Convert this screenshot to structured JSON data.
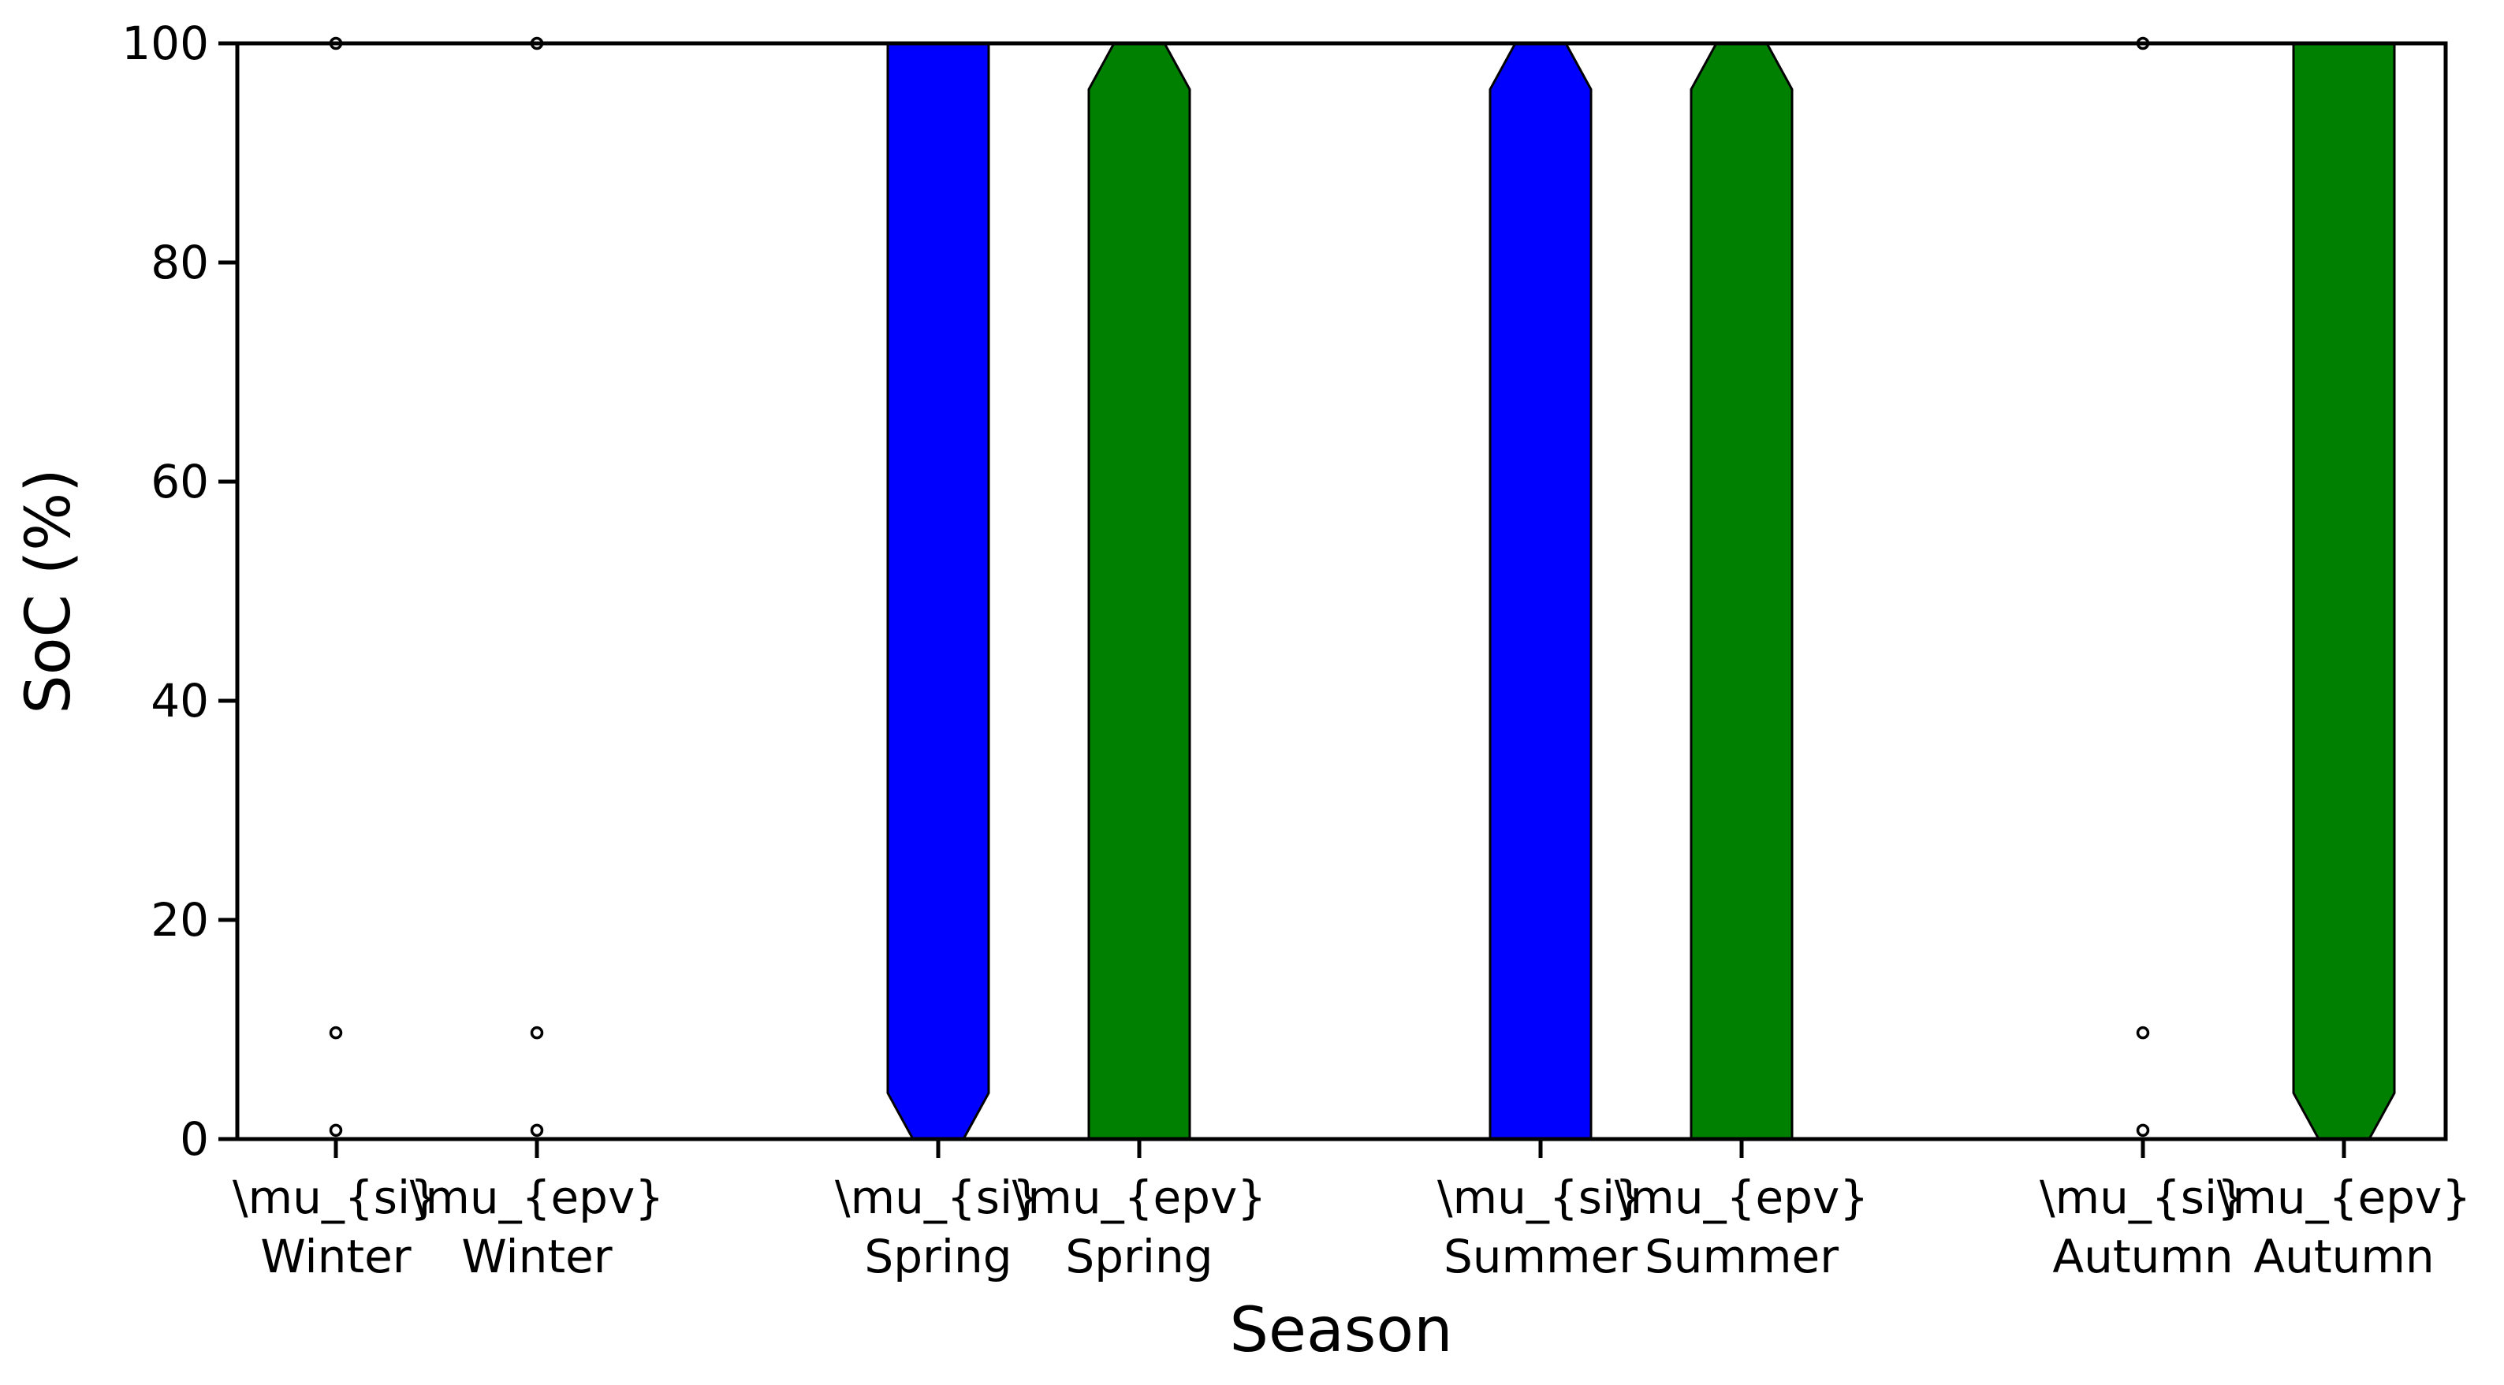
{
  "chart_data": {
    "type": "box",
    "title": "",
    "xlabel": "Season",
    "ylabel": "SoC (%)",
    "ylim": [
      0,
      100
    ],
    "yticks": [
      0,
      20,
      40,
      60,
      80,
      100
    ],
    "grid": false,
    "legend": "none",
    "categories": [
      {
        "line1": "\\mu_{si}",
        "line2": "Winter"
      },
      {
        "line1": "\\mu_{epv}",
        "line2": "Winter"
      },
      {
        "line1": "\\mu_{si}",
        "line2": "Spring"
      },
      {
        "line1": "\\mu_{epv}",
        "line2": "Spring"
      },
      {
        "line1": "\\mu_{si}",
        "line2": "Summer"
      },
      {
        "line1": "\\mu_{epv}",
        "line2": "Summer"
      },
      {
        "line1": "\\mu_{si}",
        "line2": "Autumn"
      },
      {
        "line1": "\\mu_{epv}",
        "line2": "Autumn"
      }
    ],
    "series": [
      {
        "box": null,
        "outliers": [
          100,
          9.7,
          0.8
        ]
      },
      {
        "box": null,
        "outliers": [
          100,
          9.7,
          0.8
        ]
      },
      {
        "box": {
          "q1": 0,
          "median": 0,
          "q3": 100
        },
        "outliers": []
      },
      {
        "box": {
          "q1": 0,
          "median": 100,
          "q3": 100
        },
        "outliers": []
      },
      {
        "box": {
          "q1": 0,
          "median": 100,
          "q3": 100
        },
        "outliers": []
      },
      {
        "box": {
          "q1": 0,
          "median": 100,
          "q3": 100
        },
        "outliers": []
      },
      {
        "box": null,
        "outliers": [
          100,
          9.7,
          0.8
        ]
      },
      {
        "box": {
          "q1": 0,
          "median": 0,
          "q3": 100
        },
        "outliers": []
      }
    ],
    "colors": [
      "#0000ff",
      "#008000",
      "#0000ff",
      "#008000",
      "#0000ff",
      "#008000",
      "#0000ff",
      "#008000"
    ],
    "notch_depth": 4.2
  }
}
